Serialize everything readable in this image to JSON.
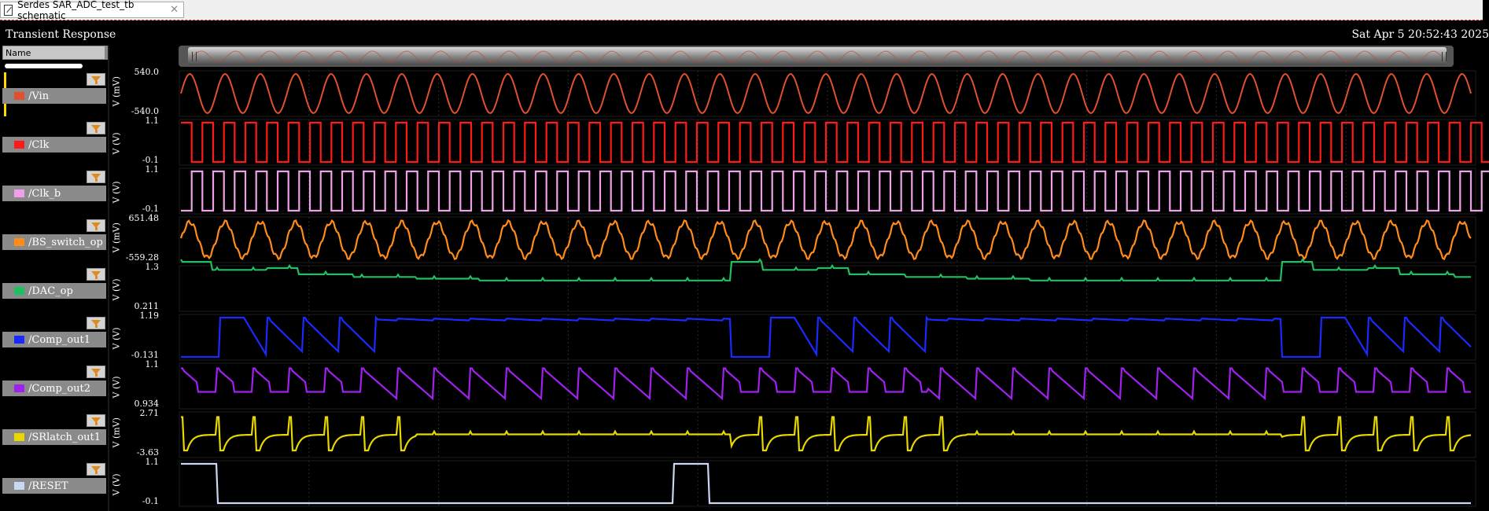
{
  "tab": {
    "label": "Serdes SAR_ADC_test_tb schematic",
    "close": "✕"
  },
  "header": {
    "title": "Transient Response",
    "date": "Sat Apr 5 20:52:43 2025"
  },
  "name_column": {
    "header": "Name"
  },
  "signals": [
    {
      "name": "/Vin",
      "color": "#e05030",
      "unit": "V (mV)",
      "ymax": "540.0",
      "ymin": "-540.0",
      "kind": "sine"
    },
    {
      "name": "/Clk",
      "color": "#ff1a1a",
      "unit": "V (V)",
      "ymax": "1.1",
      "ymin": "-0.1",
      "kind": "square"
    },
    {
      "name": "/Clk_b",
      "color": "#f0a0e8",
      "unit": "V (V)",
      "ymax": "1.1",
      "ymin": "-0.1",
      "kind": "square"
    },
    {
      "name": "/BS_switch_op",
      "color": "#ff8c1a",
      "unit": "V (mV)",
      "ymax": "651.48",
      "ymin": "-559.28",
      "kind": "bs"
    },
    {
      "name": "/DAC_op",
      "color": "#20c060",
      "unit": "V (V)",
      "ymax": "1.3",
      "ymin": "0.211",
      "kind": "dac"
    },
    {
      "name": "/Comp_out1",
      "color": "#1a2aff",
      "unit": "V (V)",
      "ymax": "1.19",
      "ymin": "-0.131",
      "kind": "comp1"
    },
    {
      "name": "/Comp_out2",
      "color": "#a020f0",
      "unit": "V (V)",
      "ymax": "1.1",
      "ymin": "0.934",
      "kind": "comp2"
    },
    {
      "name": "/SRlatch_out1",
      "color": "#e8d800",
      "unit": "V (mV)",
      "ymax": "2.71",
      "ymin": "-3.63",
      "kind": "sr"
    },
    {
      "name": "/RESET",
      "color": "#c8d8f0",
      "unit": "V (V)",
      "ymax": "1.1",
      "ymin": "-0.1",
      "kind": "reset"
    }
  ]
}
